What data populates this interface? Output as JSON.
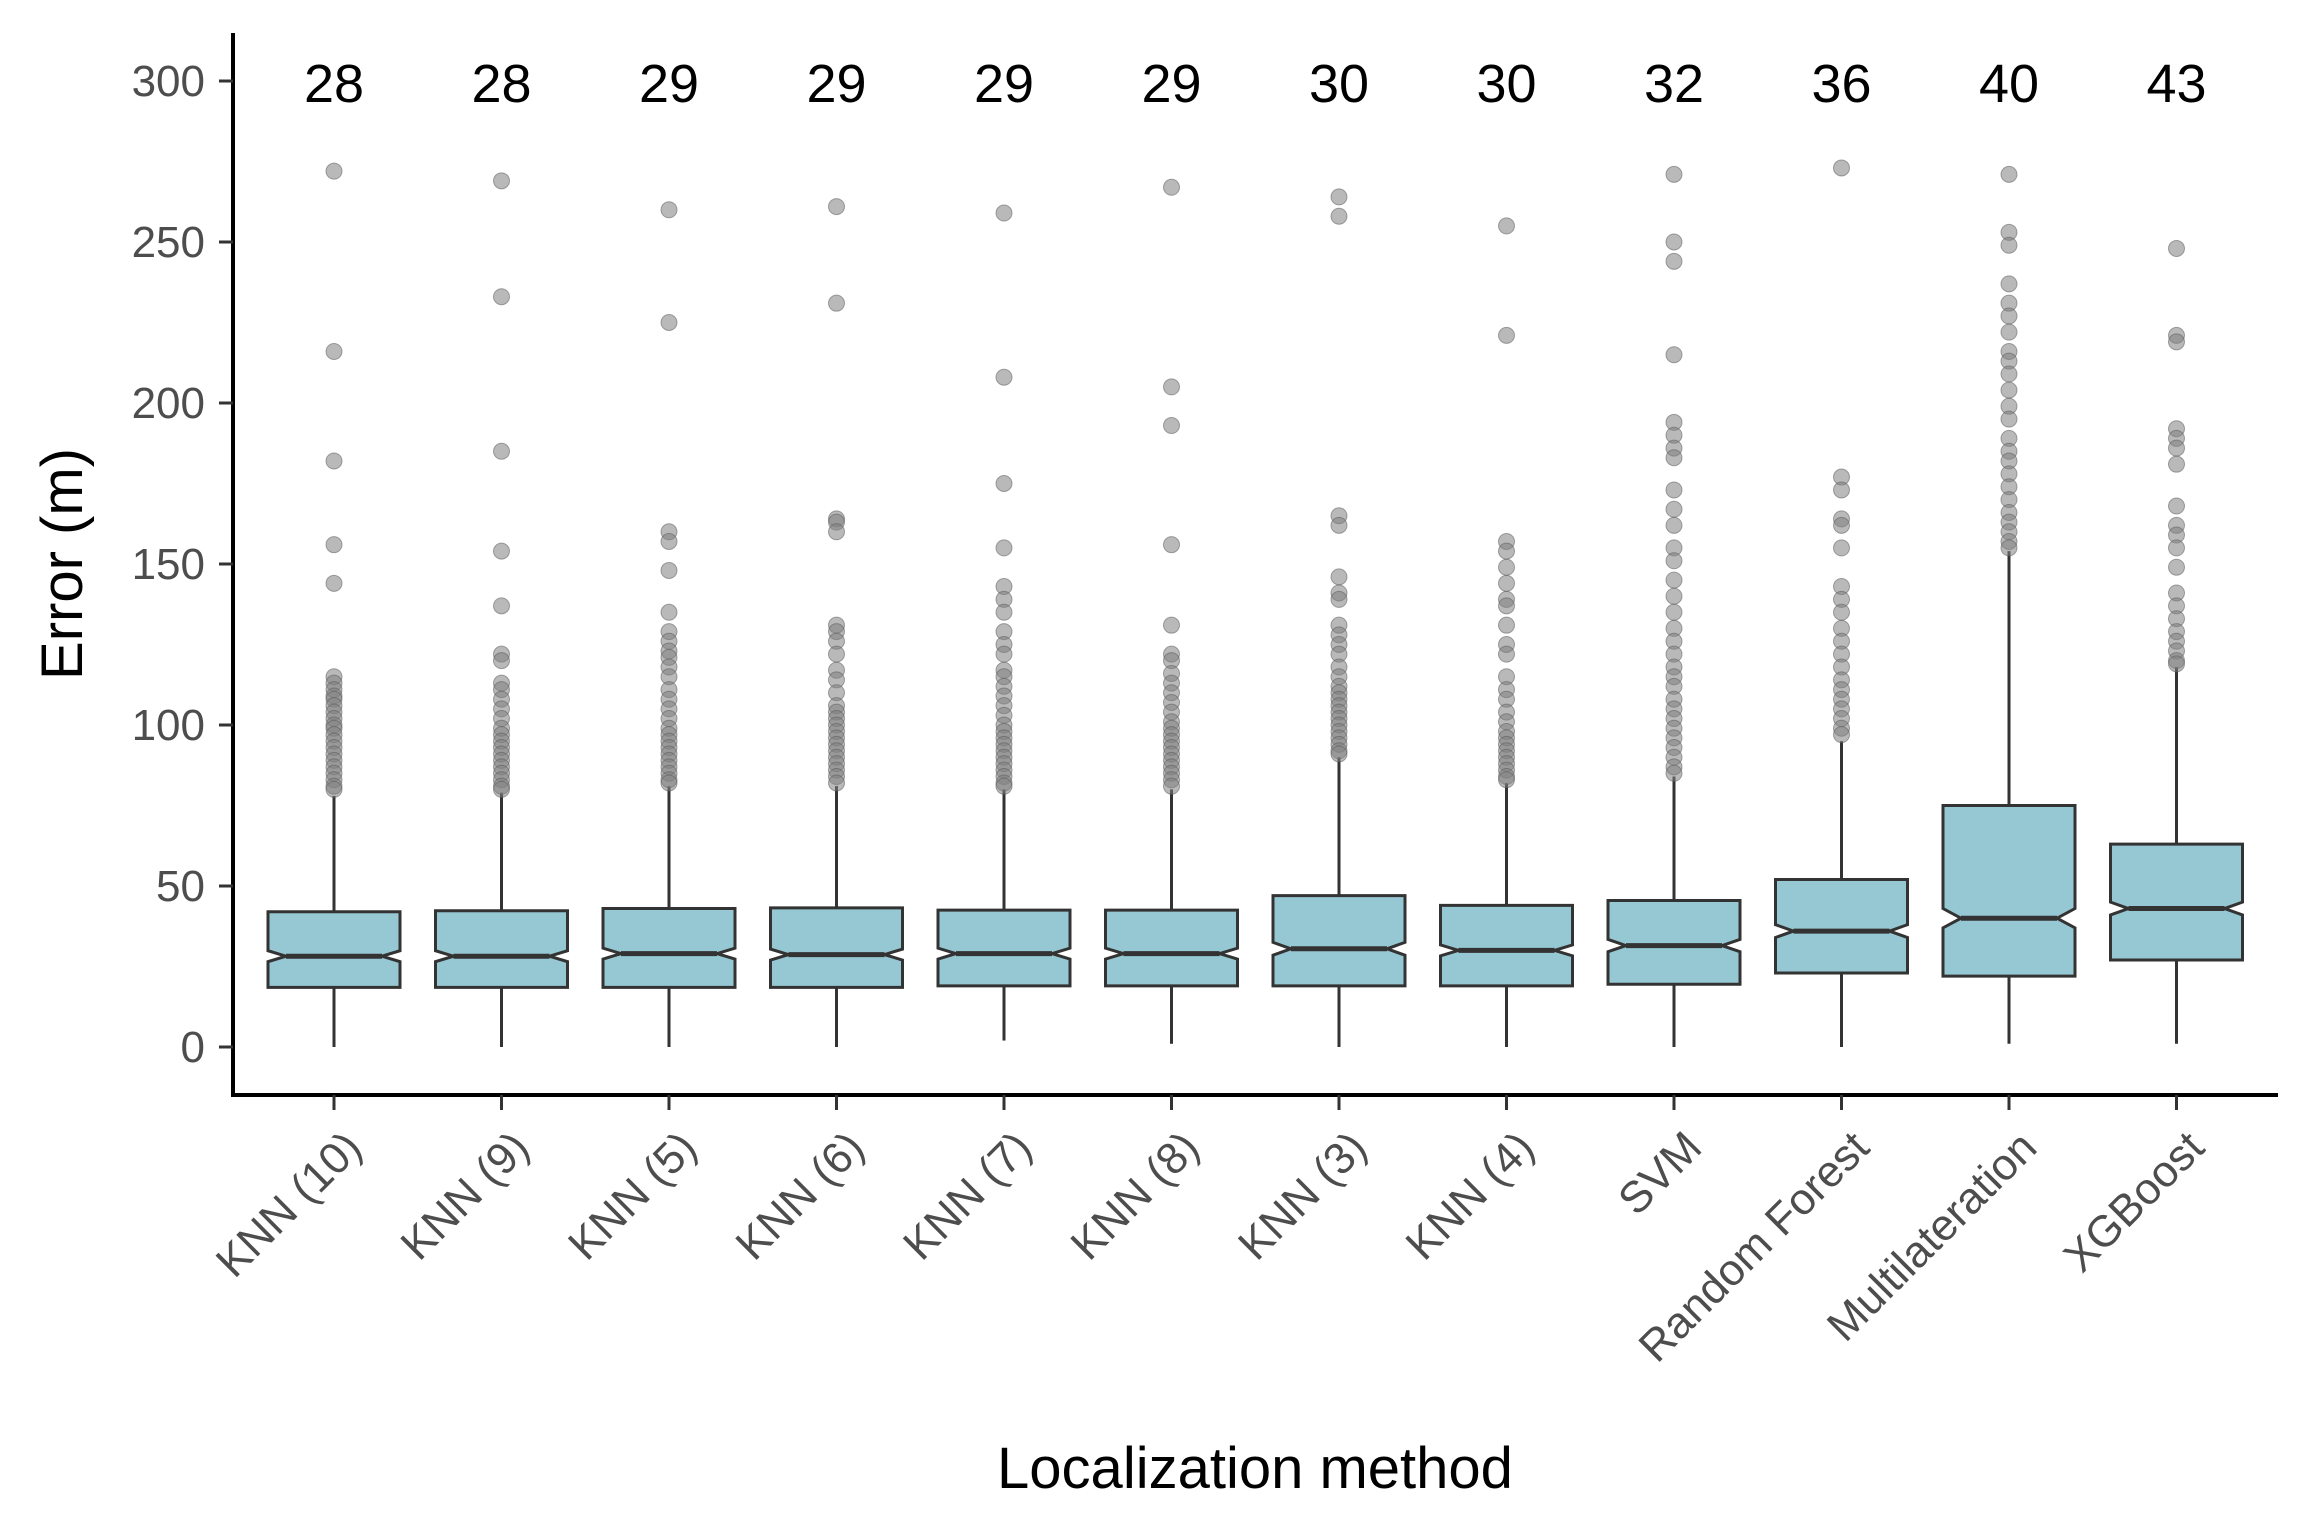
{
  "chart_data": {
    "type": "boxplot",
    "xlabel": "Localization method",
    "ylabel": "Error (m)",
    "ylim": [
      -12,
      315
    ],
    "yticks": [
      0,
      50,
      100,
      150,
      200,
      250,
      300
    ],
    "grid": false,
    "notched": true,
    "categories": [
      "KNN (10)",
      "KNN (9)",
      "KNN (5)",
      "KNN (6)",
      "KNN (7)",
      "KNN (8)",
      "KNN (3)",
      "KNN (4)",
      "SVM",
      "Random Forest",
      "Multilateration",
      "XGBoost"
    ],
    "median_labels": [
      "28",
      "28",
      "29",
      "29",
      "29",
      "29",
      "30",
      "30",
      "32",
      "36",
      "40",
      "43"
    ],
    "boxes": [
      {
        "q1": 18.5,
        "median": 28.2,
        "q3": 42,
        "whisker_low": 0,
        "whisker_high": 78,
        "notch_low": 26.5,
        "notch_high": 29.9,
        "outliers": [
          272,
          216,
          182,
          156,
          144,
          115,
          113,
          111,
          109,
          108,
          106,
          104,
          102,
          100,
          99,
          97,
          95,
          93,
          91,
          89,
          87,
          85,
          83,
          81,
          80
        ]
      },
      {
        "q1": 18.5,
        "median": 28.2,
        "q3": 42.3,
        "whisker_low": 0,
        "whisker_high": 79,
        "notch_low": 26.5,
        "notch_high": 29.9,
        "outliers": [
          269,
          233,
          185,
          154,
          137,
          122,
          120,
          113,
          111,
          108,
          105,
          102,
          99,
          97,
          95,
          93,
          91,
          89,
          87,
          85,
          83,
          81,
          80
        ]
      },
      {
        "q1": 18.5,
        "median": 29,
        "q3": 43,
        "whisker_low": 0,
        "whisker_high": 81,
        "notch_low": 27.3,
        "notch_high": 30.7,
        "outliers": [
          260,
          225,
          160,
          157,
          148,
          135,
          129,
          126,
          123,
          121,
          118,
          115,
          111,
          108,
          105,
          102,
          99,
          97,
          95,
          93,
          91,
          89,
          87,
          85,
          83,
          82
        ]
      },
      {
        "q1": 18.5,
        "median": 28.7,
        "q3": 43.2,
        "whisker_low": 0,
        "whisker_high": 81,
        "notch_low": 27,
        "notch_high": 30.4,
        "outliers": [
          261,
          231,
          164,
          163,
          160,
          131,
          129,
          126,
          122,
          117,
          114,
          110,
          106,
          104,
          102,
          100,
          98,
          96,
          94,
          92,
          90,
          88,
          86,
          84,
          82
        ]
      },
      {
        "q1": 19,
        "median": 29,
        "q3": 42.5,
        "whisker_low": 2,
        "whisker_high": 80,
        "notch_low": 27.3,
        "notch_high": 30.7,
        "outliers": [
          259,
          208,
          175,
          155,
          143,
          139,
          135,
          129,
          125,
          122,
          117,
          115,
          112,
          109,
          106,
          103,
          100,
          98,
          96,
          94,
          92,
          90,
          88,
          86,
          84,
          82,
          81
        ]
      },
      {
        "q1": 19,
        "median": 29,
        "q3": 42.5,
        "whisker_low": 1,
        "whisker_high": 80,
        "notch_low": 27.3,
        "notch_high": 30.7,
        "outliers": [
          267,
          205,
          193,
          156,
          131,
          122,
          120,
          116,
          113,
          110,
          107,
          104,
          101,
          99,
          97,
          95,
          93,
          91,
          89,
          87,
          85,
          83,
          81
        ]
      },
      {
        "q1": 19,
        "median": 30.5,
        "q3": 47,
        "whisker_low": 0,
        "whisker_high": 90,
        "notch_low": 28.5,
        "notch_high": 32.5,
        "outliers": [
          264,
          258,
          165,
          162,
          146,
          141,
          139,
          131,
          128,
          125,
          122,
          118,
          115,
          112,
          110,
          108,
          106,
          104,
          102,
          100,
          98,
          96,
          94,
          92,
          91
        ]
      },
      {
        "q1": 19,
        "median": 30,
        "q3": 44,
        "whisker_low": 0,
        "whisker_high": 82,
        "notch_low": 28.3,
        "notch_high": 31.7,
        "outliers": [
          255,
          221,
          157,
          154,
          149,
          144,
          139,
          137,
          131,
          125,
          122,
          115,
          111,
          108,
          104,
          101,
          98,
          96,
          94,
          92,
          90,
          88,
          86,
          84,
          83
        ]
      },
      {
        "q1": 19.5,
        "median": 31.5,
        "q3": 45.5,
        "whisker_low": 0,
        "whisker_high": 84,
        "notch_low": 29.6,
        "notch_high": 33.4,
        "outliers": [
          271,
          250,
          244,
          215,
          194,
          190,
          186,
          183,
          173,
          167,
          162,
          155,
          151,
          145,
          140,
          135,
          130,
          126,
          122,
          118,
          115,
          112,
          108,
          105,
          102,
          99,
          96,
          93,
          90,
          87,
          85
        ]
      },
      {
        "q1": 23,
        "median": 36,
        "q3": 52,
        "whisker_low": 0,
        "whisker_high": 95,
        "notch_low": 34,
        "notch_high": 38,
        "outliers": [
          273,
          177,
          173,
          164,
          162,
          155,
          143,
          139,
          135,
          130,
          126,
          122,
          118,
          114,
          111,
          108,
          105,
          102,
          99,
          97
        ]
      },
      {
        "q1": 22,
        "median": 40,
        "q3": 75,
        "whisker_low": 1,
        "whisker_high": 154,
        "notch_low": 37,
        "notch_high": 43,
        "outliers": [
          271,
          253,
          249,
          237,
          231,
          227,
          222,
          216,
          213,
          209,
          204,
          199,
          195,
          189,
          185,
          182,
          178,
          174,
          170,
          166,
          163,
          160,
          157,
          155
        ]
      },
      {
        "q1": 27,
        "median": 43,
        "q3": 63,
        "whisker_low": 1,
        "whisker_high": 118,
        "notch_low": 41,
        "notch_high": 45,
        "outliers": [
          248,
          221,
          219,
          192,
          189,
          186,
          181,
          168,
          162,
          159,
          155,
          149,
          141,
          137,
          133,
          129,
          126,
          123,
          120,
          119
        ]
      }
    ]
  },
  "colors": {
    "box_fill": "#96c8d4",
    "box_stroke": "#333333",
    "outlier": "#7f7f7f",
    "axis": "#000000",
    "tick_label": "#4d4d4d"
  }
}
